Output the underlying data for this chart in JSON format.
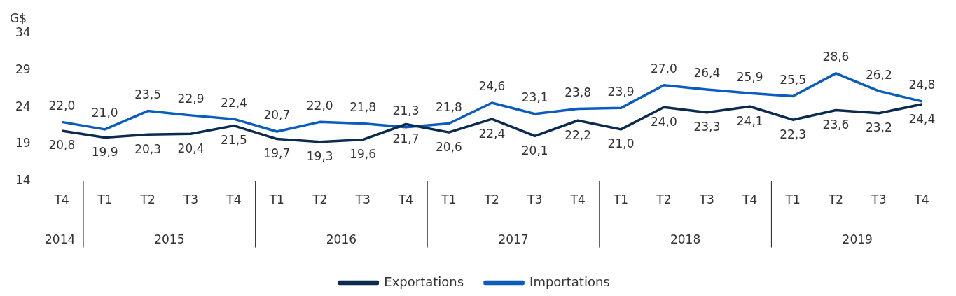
{
  "chart_data": {
    "type": "line",
    "ylabel": "G$",
    "categories": [
      "T4",
      "T1",
      "T2",
      "T3",
      "T4",
      "T1",
      "T2",
      "T3",
      "T4",
      "T1",
      "T2",
      "T3",
      "T4",
      "T1",
      "T2",
      "T3",
      "T4",
      "T1",
      "T2",
      "T3",
      "T4"
    ],
    "annotations": [
      "2014",
      "2015",
      "2016",
      "2017",
      "2018",
      "2019"
    ],
    "series": [
      {
        "name": "Exportations",
        "color": "#0b2a4f",
        "values": [
          20.8,
          19.9,
          20.3,
          20.4,
          21.5,
          19.7,
          19.3,
          19.6,
          21.7,
          20.6,
          22.4,
          20.1,
          22.2,
          21.0,
          24.0,
          23.3,
          24.1,
          22.3,
          23.6,
          23.2,
          24.4
        ],
        "value_labels": [
          "20,8",
          "19,9",
          "20,3",
          "20,4",
          "21,5",
          "19,7",
          "19,3",
          "19,6",
          "21,7",
          "20,6",
          "22,4",
          "20,1",
          "22,2",
          "21,0",
          "24,0",
          "23,3",
          "24,1",
          "22,3",
          "23,6",
          "23,2",
          "24,4"
        ]
      },
      {
        "name": "Importations",
        "color": "#0a5cbd",
        "values": [
          22.0,
          21.0,
          23.5,
          22.9,
          22.4,
          20.7,
          22.0,
          21.8,
          21.3,
          21.8,
          24.6,
          23.1,
          23.8,
          23.9,
          27.0,
          26.4,
          25.9,
          25.5,
          28.6,
          26.2,
          24.8
        ],
        "value_labels": [
          "22,0",
          "21,0",
          "23,5",
          "22,9",
          "22,4",
          "20,7",
          "22,0",
          "21,8",
          "21,3",
          "21,8",
          "24,6",
          "23,1",
          "23,8",
          "23,9",
          "27,0",
          "26,4",
          "25,9",
          "25,5",
          "28,6",
          "26,2",
          "24,8"
        ]
      }
    ],
    "ylim": [
      14,
      34
    ],
    "yticks": [
      14,
      19,
      24,
      29,
      34
    ],
    "grid": false,
    "legend": "bottom",
    "marker": "none",
    "line_style": "solid"
  }
}
